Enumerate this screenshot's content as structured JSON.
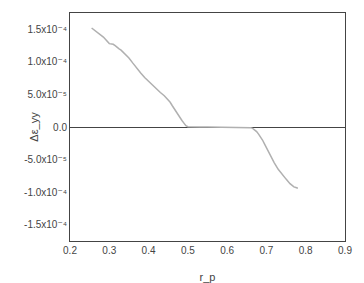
{
  "chart_data": {
    "type": "line",
    "xlabel": "r_p",
    "ylabel": "Δε_yy",
    "x": [
      0.255,
      0.27,
      0.285,
      0.3,
      0.31,
      0.315,
      0.32,
      0.325,
      0.33,
      0.34,
      0.35,
      0.36,
      0.37,
      0.38,
      0.39,
      0.4,
      0.41,
      0.42,
      0.43,
      0.44,
      0.445,
      0.45,
      0.455,
      0.46,
      0.465,
      0.47,
      0.475,
      0.48,
      0.485,
      0.49,
      0.495,
      0.5,
      0.51,
      0.53,
      0.55,
      0.58,
      0.6,
      0.62,
      0.64,
      0.655,
      0.66,
      0.665,
      0.67,
      0.675,
      0.68,
      0.685,
      0.69,
      0.695,
      0.7,
      0.705,
      0.71,
      0.72,
      0.73,
      0.74,
      0.75,
      0.76,
      0.765,
      0.77,
      0.775,
      0.78
    ],
    "values": [
      0.000152,
      0.000145,
      0.000138,
      0.000128,
      0.000127,
      0.000125,
      0.000122,
      0.00012,
      0.000118,
      0.000112,
      0.000106,
      9.8e-05,
      9e-05,
      8.3e-05,
      7.6e-05,
      7e-05,
      6.5e-05,
      5.9e-05,
      5.3e-05,
      4.8e-05,
      4.5e-05,
      4.2e-05,
      3.8e-05,
      3.3e-05,
      2.8e-05,
      2.3e-05,
      1.8e-05,
      1.4e-05,
      1e-05,
      6e-06,
      2e-06,
      5e-07,
      1e-07,
      0.0,
      0.0,
      0.0,
      0.0,
      0.0,
      0.0,
      -5e-07,
      -1e-06,
      -2e-06,
      -4e-06,
      -7e-06,
      -1.1e-05,
      -1.5e-05,
      -2e-05,
      -2.6e-05,
      -3.2e-05,
      -3.8e-05,
      -4.4e-05,
      -5.5e-05,
      -6.5e-05,
      -7.3e-05,
      -8e-05,
      -8.7e-05,
      -9e-05,
      -9.2e-05,
      -9.3e-05,
      -9.4e-05
    ],
    "color": "#b0b0b0",
    "xlim": [
      0.2,
      0.9
    ],
    "xticks": [
      0.2,
      0.3,
      0.4,
      0.5,
      0.6,
      0.7,
      0.8,
      0.9
    ],
    "ylim": [
      -0.000175,
      0.000175
    ],
    "yticks": [
      {
        "value": -0.00015,
        "label": "-1.5x10⁻⁴"
      },
      {
        "value": -0.0001,
        "label": "-1.0x10⁻⁴"
      },
      {
        "value": -5e-05,
        "label": "-5.0x10⁻⁵"
      },
      {
        "value": 0.0,
        "label": "0.0"
      },
      {
        "value": 5e-05,
        "label": "5.0x10⁻⁵"
      },
      {
        "value": 0.0001,
        "label": "1.0x10⁻⁴"
      },
      {
        "value": 0.00015,
        "label": "1.5x10⁻⁴"
      }
    ],
    "grid": false
  }
}
